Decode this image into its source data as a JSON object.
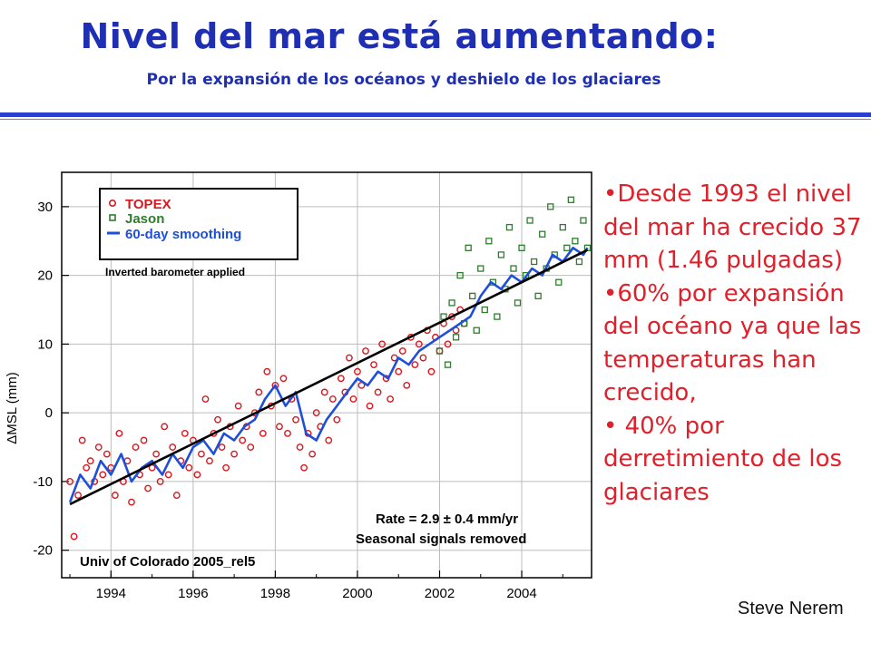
{
  "slide": {
    "title": "Nivel del mar está aumentando:",
    "subtitle": "Por la expansión de los océanos y deshielo de los glaciares",
    "bullets": [
      "•Desde 1993 el nivel del mar ha crecido 37 mm (1.46 pulgadas)",
      "•60% por expansión del océano ya que las temperaturas han crecido,",
      "• 40% por derretimiento de los glaciares"
    ],
    "credit": "Steve Nerem",
    "colors": {
      "title": "#1f2fb3",
      "bullets": "#e0202a",
      "topex": "#d6191f",
      "jason": "#2e7d2e",
      "smoothing": "#1f4fd8",
      "trend": "#000000"
    }
  },
  "chart_data": {
    "type": "scatter",
    "ylabel": "ΔMSL  (mm)",
    "xlabel": "",
    "xlim": [
      1992.8,
      2005.7
    ],
    "ylim": [
      -24,
      35
    ],
    "xticks": [
      1994,
      1996,
      1998,
      2000,
      2002,
      2004
    ],
    "xtick_labels": [
      "1994",
      "1996",
      "1998",
      "2000",
      "2002",
      "2004"
    ],
    "yticks": [
      -20,
      -10,
      0,
      10,
      20,
      30
    ],
    "ytick_labels": [
      "-20",
      "-10",
      "0",
      "10",
      "20",
      "30"
    ],
    "grid": true,
    "legend": {
      "placement": "top-left",
      "entries": [
        "TOPEX",
        "Jason",
        "60-day smoothing"
      ]
    },
    "annotations": {
      "inverted": "Inverted barometer applied",
      "rate": "Rate = 2.9 ± 0.4 mm/yr",
      "seasonal": "Seasonal signals removed",
      "source": "Univ of Colorado 2005_rel5"
    },
    "trend": {
      "name": "",
      "x": [
        1993.0,
        2005.6
      ],
      "y": [
        -13.3,
        23.7
      ]
    },
    "series": [
      {
        "name": "TOPEX",
        "x": [
          1993.0,
          1993.1,
          1993.2,
          1993.3,
          1993.4,
          1993.5,
          1993.6,
          1993.7,
          1993.8,
          1993.9,
          1994.0,
          1994.1,
          1994.2,
          1994.3,
          1994.4,
          1994.5,
          1994.6,
          1994.7,
          1994.8,
          1994.9,
          1995.0,
          1995.1,
          1995.2,
          1995.3,
          1995.4,
          1995.5,
          1995.6,
          1995.7,
          1995.8,
          1995.9,
          1996.0,
          1996.1,
          1996.2,
          1996.3,
          1996.4,
          1996.5,
          1996.6,
          1996.7,
          1996.8,
          1996.9,
          1997.0,
          1997.1,
          1997.2,
          1997.3,
          1997.4,
          1997.5,
          1997.6,
          1997.7,
          1997.8,
          1997.9,
          1998.0,
          1998.1,
          1998.2,
          1998.3,
          1998.4,
          1998.5,
          1998.6,
          1998.7,
          1998.8,
          1998.9,
          1999.0,
          1999.1,
          1999.2,
          1999.3,
          1999.4,
          1999.5,
          1999.6,
          1999.7,
          1999.8,
          1999.9,
          2000.0,
          2000.1,
          2000.2,
          2000.3,
          2000.4,
          2000.5,
          2000.6,
          2000.7,
          2000.8,
          2000.9,
          2001.0,
          2001.1,
          2001.2,
          2001.3,
          2001.4,
          2001.5,
          2001.6,
          2001.7,
          2001.8,
          2001.9,
          2002.0,
          2002.1,
          2002.2,
          2002.3,
          2002.4,
          2002.5,
          2002.6
        ],
        "y": [
          -10,
          -18,
          -12,
          -4,
          -8,
          -7,
          -10,
          -5,
          -9,
          -6,
          -8,
          -12,
          -3,
          -10,
          -7,
          -13,
          -5,
          -9,
          -4,
          -11,
          -8,
          -6,
          -10,
          -2,
          -9,
          -5,
          -12,
          -7,
          -3,
          -8,
          -4,
          -9,
          -6,
          2,
          -7,
          -3,
          -1,
          -5,
          -8,
          -2,
          -6,
          1,
          -4,
          -2,
          -5,
          0,
          3,
          -3,
          6,
          1,
          4,
          -2,
          5,
          -3,
          2,
          -1,
          -5,
          -8,
          -3,
          -6,
          0,
          -2,
          3,
          -4,
          2,
          -1,
          5,
          3,
          8,
          2,
          6,
          4,
          9,
          1,
          7,
          3,
          10,
          5,
          2,
          8,
          6,
          9,
          4,
          11,
          7,
          10,
          8,
          12,
          6,
          11,
          9,
          13,
          10,
          14,
          12,
          15,
          13
        ]
      },
      {
        "name": "Jason",
        "x": [
          2002.0,
          2002.1,
          2002.2,
          2002.3,
          2002.4,
          2002.5,
          2002.6,
          2002.7,
          2002.8,
          2002.9,
          2003.0,
          2003.1,
          2003.2,
          2003.3,
          2003.4,
          2003.5,
          2003.6,
          2003.7,
          2003.8,
          2003.9,
          2004.0,
          2004.1,
          2004.2,
          2004.3,
          2004.4,
          2004.5,
          2004.6,
          2004.7,
          2004.8,
          2004.9,
          2005.0,
          2005.1,
          2005.2,
          2005.3,
          2005.4,
          2005.5,
          2005.6
        ],
        "y": [
          9,
          14,
          7,
          16,
          11,
          20,
          13,
          24,
          17,
          12,
          21,
          15,
          25,
          19,
          14,
          23,
          18,
          27,
          21,
          16,
          24,
          20,
          28,
          22,
          17,
          26,
          21,
          30,
          23,
          19,
          27,
          24,
          31,
          25,
          22,
          28,
          24
        ]
      },
      {
        "name": "60-day smoothing",
        "x": [
          1993.0,
          1993.25,
          1993.5,
          1993.75,
          1994.0,
          1994.25,
          1994.5,
          1994.75,
          1995.0,
          1995.25,
          1995.5,
          1995.75,
          1996.0,
          1996.25,
          1996.5,
          1996.75,
          1997.0,
          1997.25,
          1997.5,
          1997.75,
          1998.0,
          1998.25,
          1998.5,
          1998.75,
          1999.0,
          1999.25,
          1999.5,
          1999.75,
          2000.0,
          2000.25,
          2000.5,
          2000.75,
          2001.0,
          2001.25,
          2001.5,
          2001.75,
          2002.0,
          2002.25,
          2002.5,
          2002.75,
          2003.0,
          2003.25,
          2003.5,
          2003.75,
          2004.0,
          2004.25,
          2004.5,
          2004.75,
          2005.0,
          2005.25,
          2005.5,
          2005.6
        ],
        "y": [
          -13,
          -9,
          -11,
          -7,
          -9,
          -6,
          -10,
          -8,
          -7,
          -9,
          -6,
          -8,
          -5,
          -4,
          -6,
          -3,
          -4,
          -2,
          -1,
          2,
          4,
          1,
          3,
          -3,
          -4,
          -1,
          1,
          3,
          5,
          4,
          6,
          5,
          8,
          7,
          9,
          10,
          11,
          12,
          13,
          14,
          17,
          19,
          18,
          20,
          19,
          21,
          20,
          23,
          22,
          24,
          23,
          24
        ]
      }
    ]
  }
}
